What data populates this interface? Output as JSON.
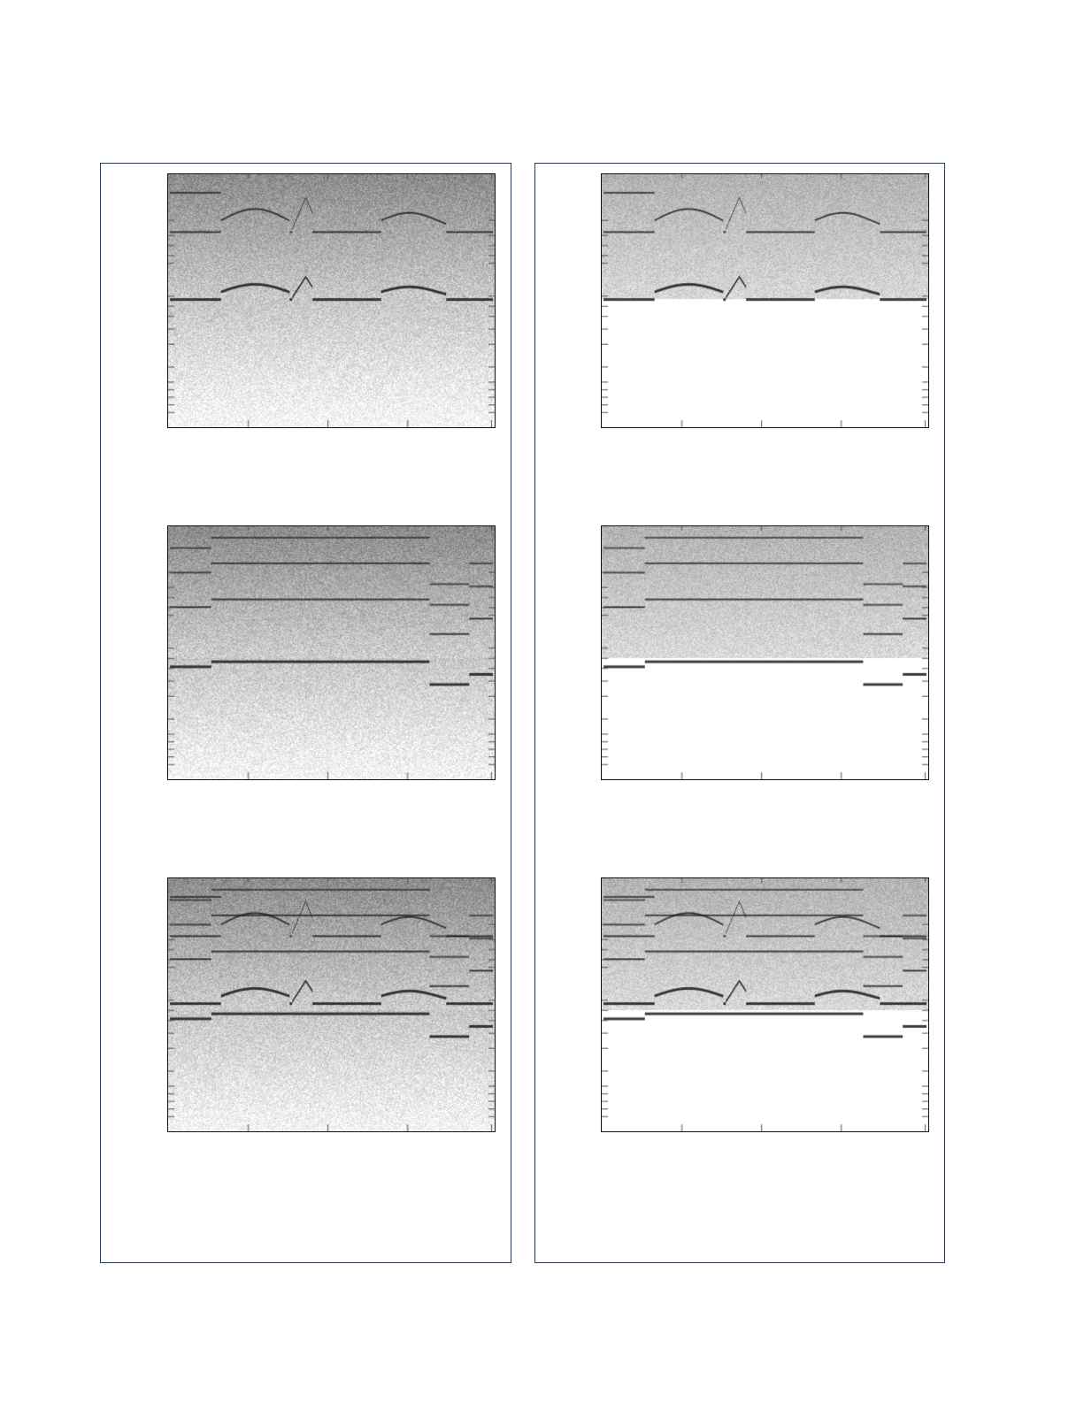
{
  "figure": {
    "frame_color": "#1f3f66",
    "axes_color": "#111111",
    "colormap": "gray (inverted)",
    "columns": [
      {
        "panels": [
          {
            "style": "full-spectrogram",
            "pitch": "melody"
          },
          {
            "style": "full-spectrogram",
            "pitch": "accompaniment"
          },
          {
            "style": "full-spectrogram",
            "pitch": "mixture"
          }
        ]
      },
      {
        "panels": [
          {
            "style": "separated",
            "pitch": "melody"
          },
          {
            "style": "separated",
            "pitch": "accompaniment"
          },
          {
            "style": "separated",
            "pitch": "mixture"
          }
        ]
      }
    ]
  }
}
